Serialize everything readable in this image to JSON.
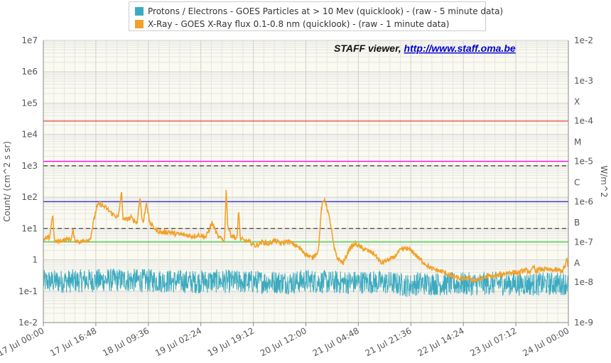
{
  "chart_data": {
    "type": "line",
    "credit": {
      "label": "STAFF viewer,",
      "link": "http://www.staff.oma.be"
    },
    "legend": [
      {
        "label": "Protons / Electrons - GOES Particles at > 10 Mev (quicklook) -  (raw - 5 minute data)",
        "color": "#3caac0"
      },
      {
        "label": "X-Ray - GOES X-Ray flux 0.1-0.8 nm (quicklook) -  (raw - 1 minute data)",
        "color": "#f2a12a"
      }
    ],
    "left_axis": {
      "label": "Count/ (cm^2 s sr)",
      "scale": "log",
      "range": [
        0.01,
        10000000
      ],
      "ticks": [
        "1e-2",
        "1e-1",
        "1",
        "1e1",
        "1e2",
        "1e3",
        "1e4",
        "1e5",
        "1e6",
        "1e7"
      ]
    },
    "right_axis": {
      "label": "W/m^2",
      "scale": "log",
      "range": [
        1e-09,
        0.01
      ],
      "ticks": [
        "1e-9",
        "1e-8",
        "1e-7",
        "1e-6",
        "1e-5",
        "1e-4",
        "1e-3",
        "1e-2"
      ],
      "class_labels": [
        {
          "label": "A",
          "value": 3e-08
        },
        {
          "label": "B",
          "value": 3e-07
        },
        {
          "label": "C",
          "value": 3e-06
        },
        {
          "label": "M",
          "value": 3e-05
        },
        {
          "label": "X",
          "value": 0.0003
        }
      ]
    },
    "x_axis": {
      "range_hours": [
        0,
        168
      ],
      "ticks": [
        "17 Jul 00:00",
        "17 Jul 16:48",
        "18 Jul 09:36",
        "19 Jul 02:24",
        "19 Jul 19:12",
        "20 Jul 12:00",
        "21 Jul 04:48",
        "21 Jul 21:36",
        "22 Jul 14:24",
        "23 Jul 07:12",
        "24 Jul 00:00"
      ]
    },
    "threshold_lines": [
      {
        "axis": "right",
        "value": 0.0001,
        "color": "#e8423a",
        "style": "solid"
      },
      {
        "axis": "right",
        "value": 1e-05,
        "color": "#ff00ff",
        "style": "solid"
      },
      {
        "axis": "left",
        "value": 1000,
        "color": "#333333",
        "style": "dashed"
      },
      {
        "axis": "right",
        "value": 1e-06,
        "color": "#3333cc",
        "style": "solid"
      },
      {
        "axis": "left",
        "value": 10,
        "color": "#333333",
        "style": "dashed"
      },
      {
        "axis": "right",
        "value": 1e-07,
        "color": "#33cc33",
        "style": "solid"
      }
    ],
    "series": [
      {
        "name": "Protons / Electrons",
        "color": "#3caac0",
        "axis": "left",
        "x": [
          0,
          8,
          16,
          24,
          32,
          40,
          48,
          56,
          64,
          72,
          80,
          84,
          88,
          96,
          104,
          112,
          117,
          120,
          128,
          136,
          144,
          152,
          160,
          168
        ],
        "y": [
          0.2,
          0.21,
          0.22,
          0.23,
          0.22,
          0.21,
          0.2,
          0.21,
          0.2,
          0.2,
          0.19,
          0.22,
          0.2,
          0.19,
          0.2,
          0.18,
          0.15,
          0.18,
          0.17,
          0.17,
          0.18,
          0.17,
          0.17,
          0.18
        ]
      },
      {
        "name": "X-Ray",
        "color": "#f2a12a",
        "axis": "right",
        "x": [
          0,
          2,
          3,
          3.5,
          4,
          6,
          9,
          9.5,
          10,
          12,
          15,
          17,
          18,
          20,
          22,
          24,
          25,
          25.5,
          26,
          28,
          30,
          31,
          31.5,
          32,
          33,
          34,
          36,
          38,
          40,
          42,
          45,
          48,
          50,
          52,
          54,
          56,
          58,
          58.5,
          59,
          60,
          62,
          62.5,
          63,
          64,
          66,
          68,
          70,
          72,
          74,
          76,
          78,
          80,
          82,
          84,
          86,
          88,
          89,
          90,
          91,
          92,
          93,
          94,
          96,
          98,
          100,
          102,
          104,
          106,
          108,
          110,
          112,
          114,
          116,
          118,
          120,
          122,
          124,
          126,
          128,
          130,
          132,
          134,
          136,
          138,
          140,
          142,
          144,
          146,
          148,
          150,
          152,
          154,
          156,
          157,
          157.5,
          158,
          160,
          162,
          164,
          166,
          167,
          167.5,
          168
        ],
        "y": [
          1.1e-07,
          1.3e-07,
          5e-07,
          1.1e-07,
          1e-07,
          1.1e-07,
          1.2e-07,
          2e-07,
          1.1e-07,
          1e-07,
          1.2e-07,
          7e-07,
          9e-07,
          7e-07,
          5e-07,
          4e-07,
          1.8e-06,
          4e-07,
          3.5e-07,
          4e-07,
          3e-07,
          1.4e-06,
          4e-07,
          3e-07,
          1e-06,
          3e-07,
          2e-07,
          1.7e-07,
          1.8e-07,
          1.6e-07,
          1.5e-07,
          1.4e-07,
          1.5e-07,
          1.3e-07,
          3e-07,
          1.3e-07,
          1.1e-07,
          2.2e-06,
          2.5e-07,
          1.5e-07,
          1.2e-07,
          7e-07,
          1.2e-07,
          1.1e-07,
          1e-07,
          8e-08,
          1e-07,
          9e-08,
          1.1e-07,
          9e-08,
          1.05e-07,
          9e-08,
          7e-08,
          5e-08,
          4e-08,
          6e-08,
          7e-07,
          1.2e-06,
          6e-07,
          2.5e-07,
          7e-08,
          4e-08,
          3e-08,
          7e-08,
          9e-08,
          7e-08,
          6e-08,
          5e-08,
          3e-08,
          3.5e-08,
          4e-08,
          6e-08,
          7e-08,
          6e-08,
          4e-08,
          3e-08,
          2.2e-08,
          2e-08,
          1.8e-08,
          1.5e-08,
          1.3e-08,
          1.2e-08,
          1.3e-08,
          1.1e-08,
          1.2e-08,
          1.4e-08,
          1.4e-08,
          1.5e-08,
          1.7e-08,
          1.8e-08,
          1.7e-08,
          2e-08,
          1.8e-08,
          2.5e-08,
          1.9e-08,
          2e-08,
          2.1e-08,
          2e-08,
          2e-08,
          1.9e-08,
          2.5e-08,
          4e-08,
          1.9e-08
        ]
      }
    ]
  }
}
